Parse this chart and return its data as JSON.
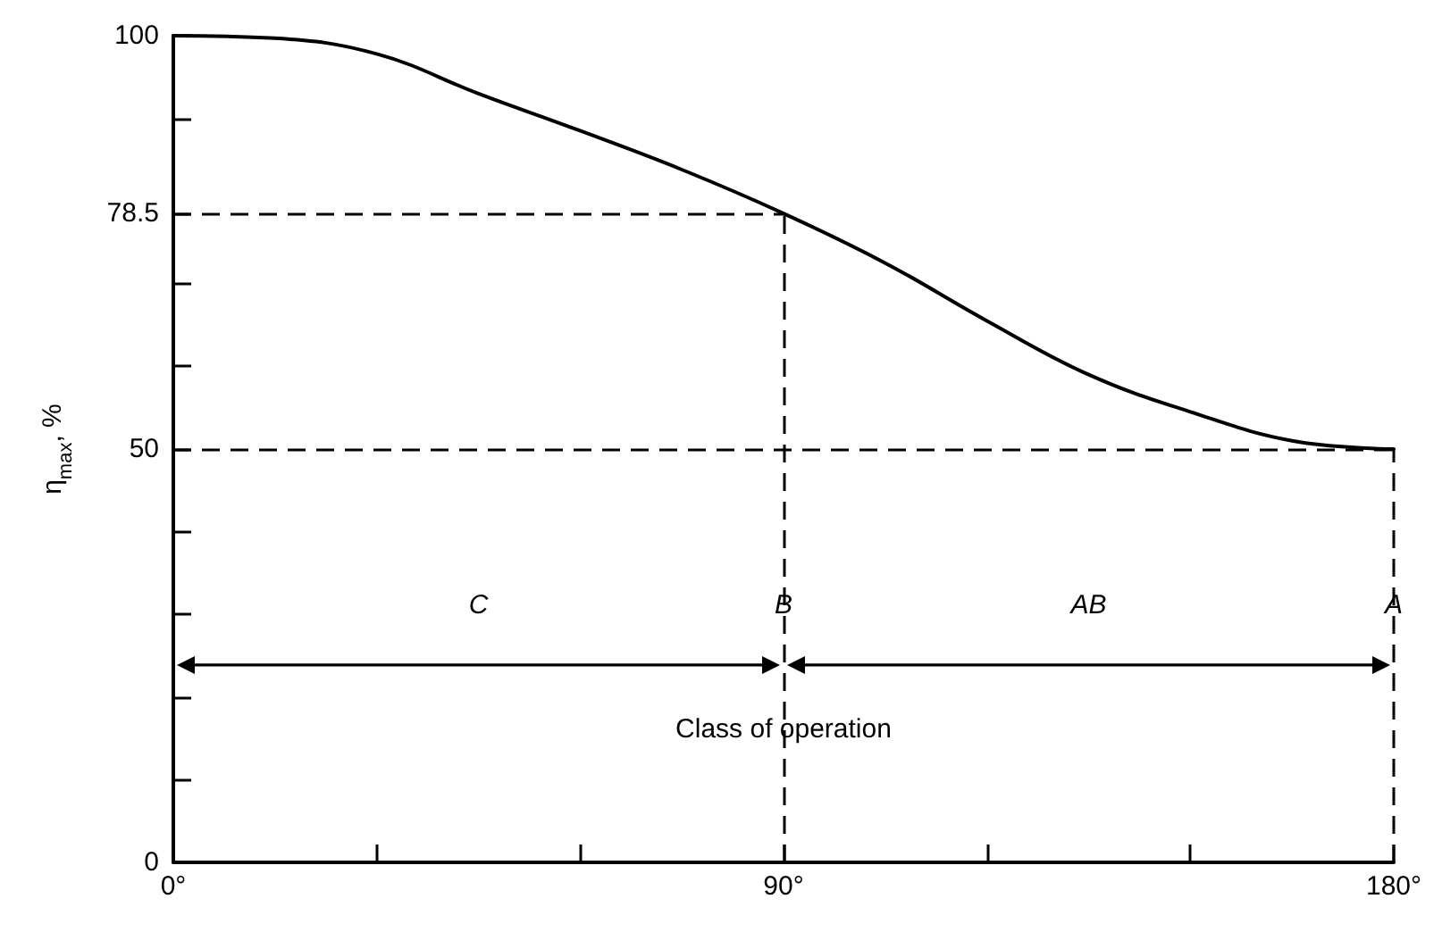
{
  "chart_data": {
    "type": "line",
    "ylabel": "η$_{max}$, %",
    "x": [
      0,
      15,
      30,
      45,
      60,
      75,
      90,
      105,
      120,
      135,
      150,
      165,
      180
    ],
    "series": [
      {
        "color": "#000000",
        "values": [
          100,
          99.7,
          97.8,
          93,
          88.5,
          83.8,
          78.5,
          72.5,
          65.5,
          59,
          54.5,
          51,
          50
        ]
      }
    ],
    "xlim": [
      0,
      180
    ],
    "xticks": [
      {
        "value": 0,
        "label": "0°"
      },
      {
        "value": 30,
        "label": null
      },
      {
        "value": 60,
        "label": null
      },
      {
        "value": 90,
        "label": "90°"
      },
      {
        "value": 120,
        "label": null
      },
      {
        "value": 150,
        "label": null
      },
      {
        "value": 180,
        "label": "180°"
      }
    ],
    "ylim": [
      0,
      100
    ],
    "yticks": [
      0,
      {
        "value": 10,
        "label": null
      },
      {
        "value": 20,
        "label": null
      },
      {
        "value": 30,
        "label": null
      },
      {
        "value": 40,
        "label": null
      },
      50,
      {
        "value": 60,
        "label": null
      },
      {
        "value": 70,
        "label": null
      },
      78.5,
      {
        "value": 90,
        "label": null
      },
      100
    ],
    "ref_lines": [
      {
        "axis": "y",
        "value": 78.5,
        "line_style": "dashed",
        "color": "#000000"
      },
      {
        "axis": "y",
        "value": 50,
        "line_style": "dashed",
        "color": "#000000"
      },
      {
        "axis": "x",
        "value": 90,
        "line_style": "dashed",
        "color": "#000000"
      },
      {
        "axis": "x",
        "value": 180,
        "line_style": "dashed",
        "color": "#000000"
      }
    ],
    "annotations": [
      "C",
      "B",
      "AB",
      "A",
      "Class of operation"
    ],
    "marker": "none",
    "line_style": "solid",
    "grid": false
  }
}
